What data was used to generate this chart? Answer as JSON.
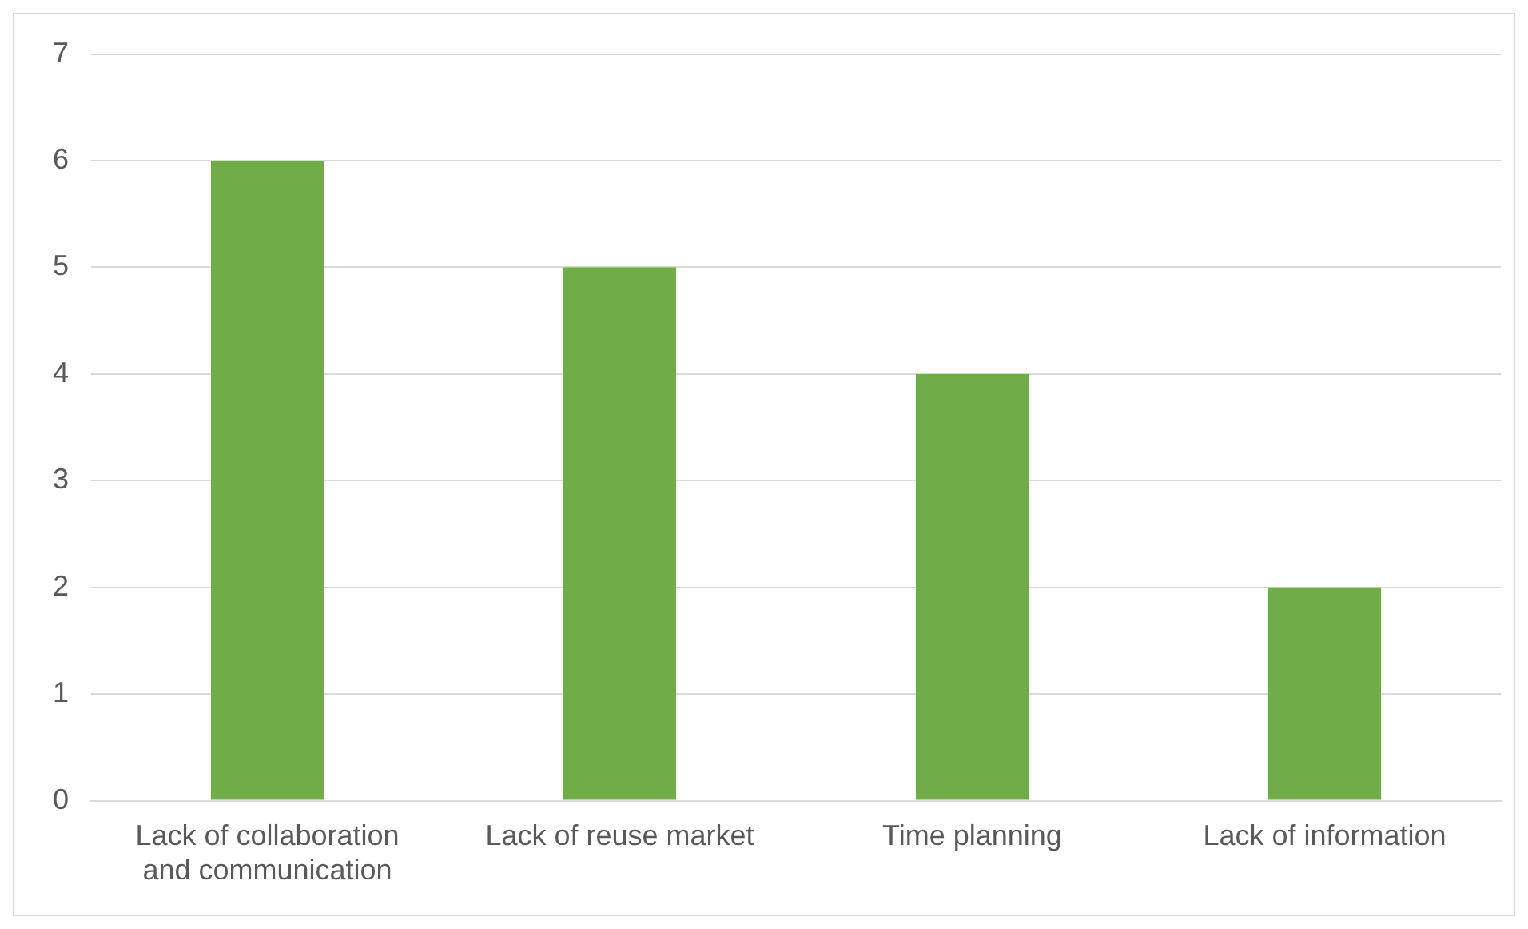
{
  "chart_data": {
    "type": "bar",
    "categories": [
      "Lack of collaboration and communication",
      "Lack of reuse market",
      "Time planning",
      "Lack of information"
    ],
    "values": [
      6,
      5,
      4,
      2
    ],
    "color": "#70ad47",
    "ylim": [
      0,
      7
    ],
    "yticks": [
      0,
      1,
      2,
      3,
      4,
      5,
      6,
      7
    ],
    "grid": "y",
    "legend": false
  }
}
